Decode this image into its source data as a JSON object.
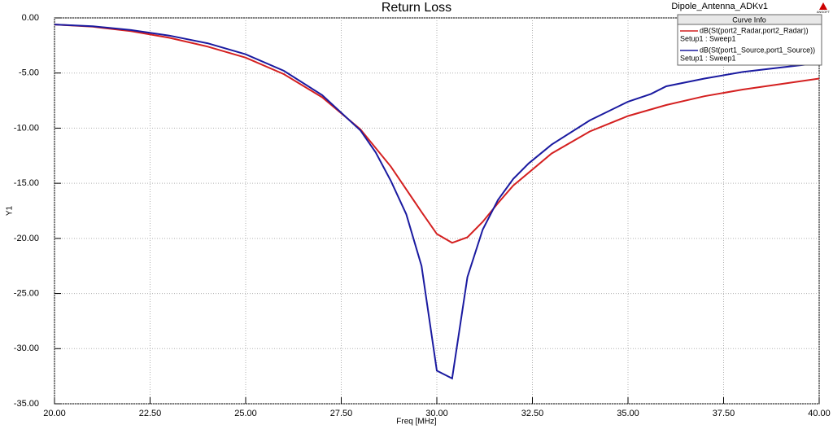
{
  "chart_data": {
    "type": "line",
    "title": "Return Loss",
    "project": "Dipole_Antenna_ADKv1",
    "logo": "ANSOFT",
    "xlabel": "Freq [MHz]",
    "ylabel": "Y1",
    "legend_title": "Curve Info",
    "legend": "top-right",
    "grid": true,
    "xlim": [
      20,
      40
    ],
    "xticks": [
      {
        "value": 20,
        "label": "20.00"
      },
      {
        "value": 22.5,
        "label": "22.50"
      },
      {
        "value": 25,
        "label": "25.00"
      },
      {
        "value": 27.5,
        "label": "27.50"
      },
      {
        "value": 30,
        "label": "30.00"
      },
      {
        "value": 32.5,
        "label": "32.50"
      },
      {
        "value": 35,
        "label": "35.00"
      },
      {
        "value": 37.5,
        "label": "37.50"
      },
      {
        "value": 40,
        "label": "40.00"
      }
    ],
    "ylim": [
      -35,
      0
    ],
    "yticks": [
      {
        "value": 0,
        "label": "0.00"
      },
      {
        "value": -5,
        "label": "-5.00"
      },
      {
        "value": -10,
        "label": "-10.00"
      },
      {
        "value": -15,
        "label": "-15.00"
      },
      {
        "value": -20,
        "label": "-20.00"
      },
      {
        "value": -25,
        "label": "-25.00"
      },
      {
        "value": -30,
        "label": "-30.00"
      },
      {
        "value": -35,
        "label": "-35.00"
      }
    ],
    "series": [
      {
        "name": "dB(St(port2_Radar,port2_Radar))",
        "setup": "Setup1 : Sweep1",
        "color": "#d42020",
        "x": [
          20,
          21,
          22,
          23,
          24,
          25,
          26,
          27,
          28,
          28.8,
          29.6,
          30,
          30.4,
          30.8,
          31.2,
          31.6,
          32,
          33,
          34,
          35,
          36,
          37,
          38,
          39,
          40
        ],
        "values": [
          -0.6,
          -0.8,
          -1.2,
          -1.8,
          -2.6,
          -3.6,
          -5.1,
          -7.2,
          -10.1,
          -13.5,
          -17.6,
          -19.6,
          -20.4,
          -19.9,
          -18.5,
          -16.8,
          -15.2,
          -12.3,
          -10.3,
          -8.9,
          -7.9,
          -7.1,
          -6.5,
          -6.0,
          -5.5
        ]
      },
      {
        "name": "dB(St(port1_Source,port1_Source))",
        "setup": "Setup1 : Sweep1",
        "color": "#1a1aa0",
        "x": [
          20,
          21,
          22,
          23,
          24,
          25,
          26,
          27,
          28,
          28.4,
          28.8,
          29.2,
          29.6,
          30,
          30.4,
          30.8,
          31.2,
          31.6,
          32,
          32.4,
          33,
          34,
          35,
          35.6,
          36,
          37,
          38,
          39,
          40
        ],
        "values": [
          -0.6,
          -0.75,
          -1.1,
          -1.6,
          -2.3,
          -3.3,
          -4.8,
          -7.0,
          -10.2,
          -12.2,
          -14.8,
          -17.8,
          -22.5,
          -32.0,
          -32.7,
          -23.5,
          -19.2,
          -16.5,
          -14.6,
          -13.2,
          -11.5,
          -9.3,
          -7.6,
          -6.9,
          -6.2,
          -5.5,
          -4.9,
          -4.5,
          -4.1
        ]
      }
    ]
  }
}
